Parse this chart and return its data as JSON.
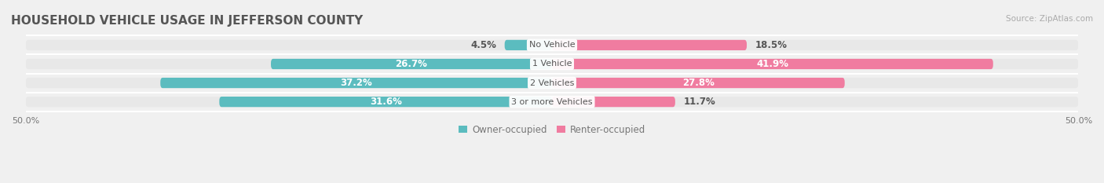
{
  "title": "HOUSEHOLD VEHICLE USAGE IN JEFFERSON COUNTY",
  "source": "Source: ZipAtlas.com",
  "categories": [
    "No Vehicle",
    "1 Vehicle",
    "2 Vehicles",
    "3 or more Vehicles"
  ],
  "owner_values": [
    4.5,
    26.7,
    37.2,
    31.6
  ],
  "renter_values": [
    18.5,
    41.9,
    27.8,
    11.7
  ],
  "owner_color": "#5bbcbf",
  "renter_color": "#f07ca0",
  "owner_label": "Owner-occupied",
  "renter_label": "Renter-occupied",
  "axis_range": 50.0,
  "bar_height": 0.55,
  "background_color": "#f0f0f0",
  "bar_bg_color": "#e8e8e8",
  "title_fontsize": 11,
  "label_fontsize": 8.5,
  "tick_fontsize": 8,
  "source_fontsize": 7.5
}
